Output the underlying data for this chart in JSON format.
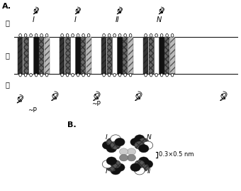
{
  "title_A": "A.",
  "title_B": "B.",
  "label_outer": "外",
  "label_membrane": "膜",
  "label_inner": "内",
  "label_domains": [
    "I",
    "I",
    "II",
    "N"
  ],
  "label_p1": "~P",
  "label_p2": "~P",
  "label_nm": "0.3×0.5 nm",
  "bg_color": "#ffffff",
  "seg_styles_per_domain": [
    "diag_dark",
    "checker",
    "white",
    "solid_dark",
    "checker",
    "diag_light"
  ],
  "domain_colors": {
    "solid_dark": "#1a1a1a",
    "diag_dark": "#333333",
    "checker": "#666666",
    "diag_light": "#aaaaaa",
    "white": "#ffffff"
  }
}
